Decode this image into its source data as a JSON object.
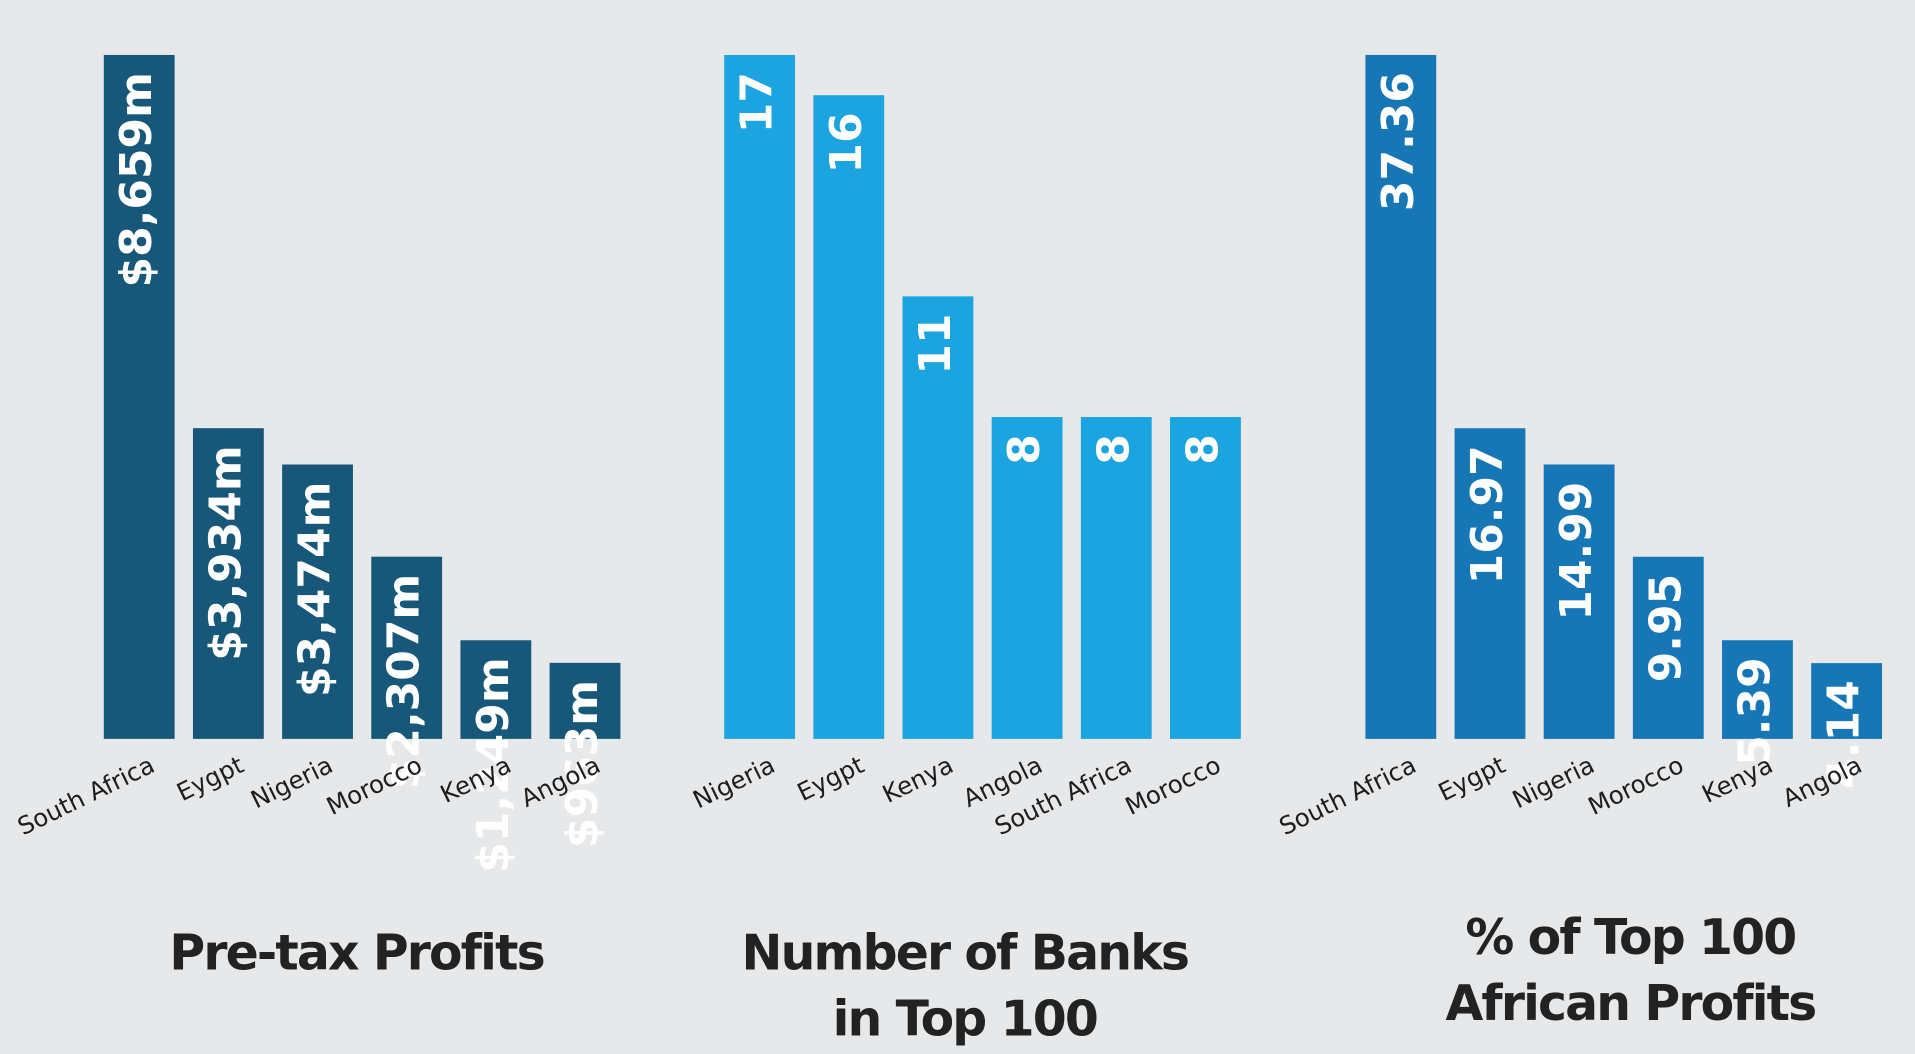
{
  "chart_data": [
    {
      "type": "bar",
      "title": [
        "Pre-tax Profits"
      ],
      "categories": [
        "South Africa",
        "Eygpt",
        "Nigeria",
        "Morocco",
        "Kenya",
        "Angola"
      ],
      "values": [
        8659,
        3934,
        3474,
        2307,
        1249,
        963
      ],
      "value_labels": [
        "$8,659m",
        "$3,934m",
        "$3,474m",
        "$2,307m",
        "$1,249m",
        "$963m"
      ],
      "color": "#17587a"
    },
    {
      "type": "bar",
      "title": [
        "Number of Banks",
        "in Top 100"
      ],
      "categories": [
        "Nigeria",
        "Eygpt",
        "Kenya",
        "Angola",
        "South Africa",
        "Morocco"
      ],
      "values": [
        17,
        16,
        11,
        8,
        8,
        8
      ],
      "color": "#1ba4df"
    },
    {
      "type": "bar",
      "title": [
        "% of Top 100",
        "African Profits"
      ],
      "categories": [
        "South Africa",
        "Eygpt",
        "Nigeria",
        "Morocco",
        "Kenya",
        "Angola"
      ],
      "values": [
        37.36,
        16.97,
        14.99,
        9.95,
        5.39,
        4.14
      ],
      "color": "#1676b6"
    }
  ]
}
